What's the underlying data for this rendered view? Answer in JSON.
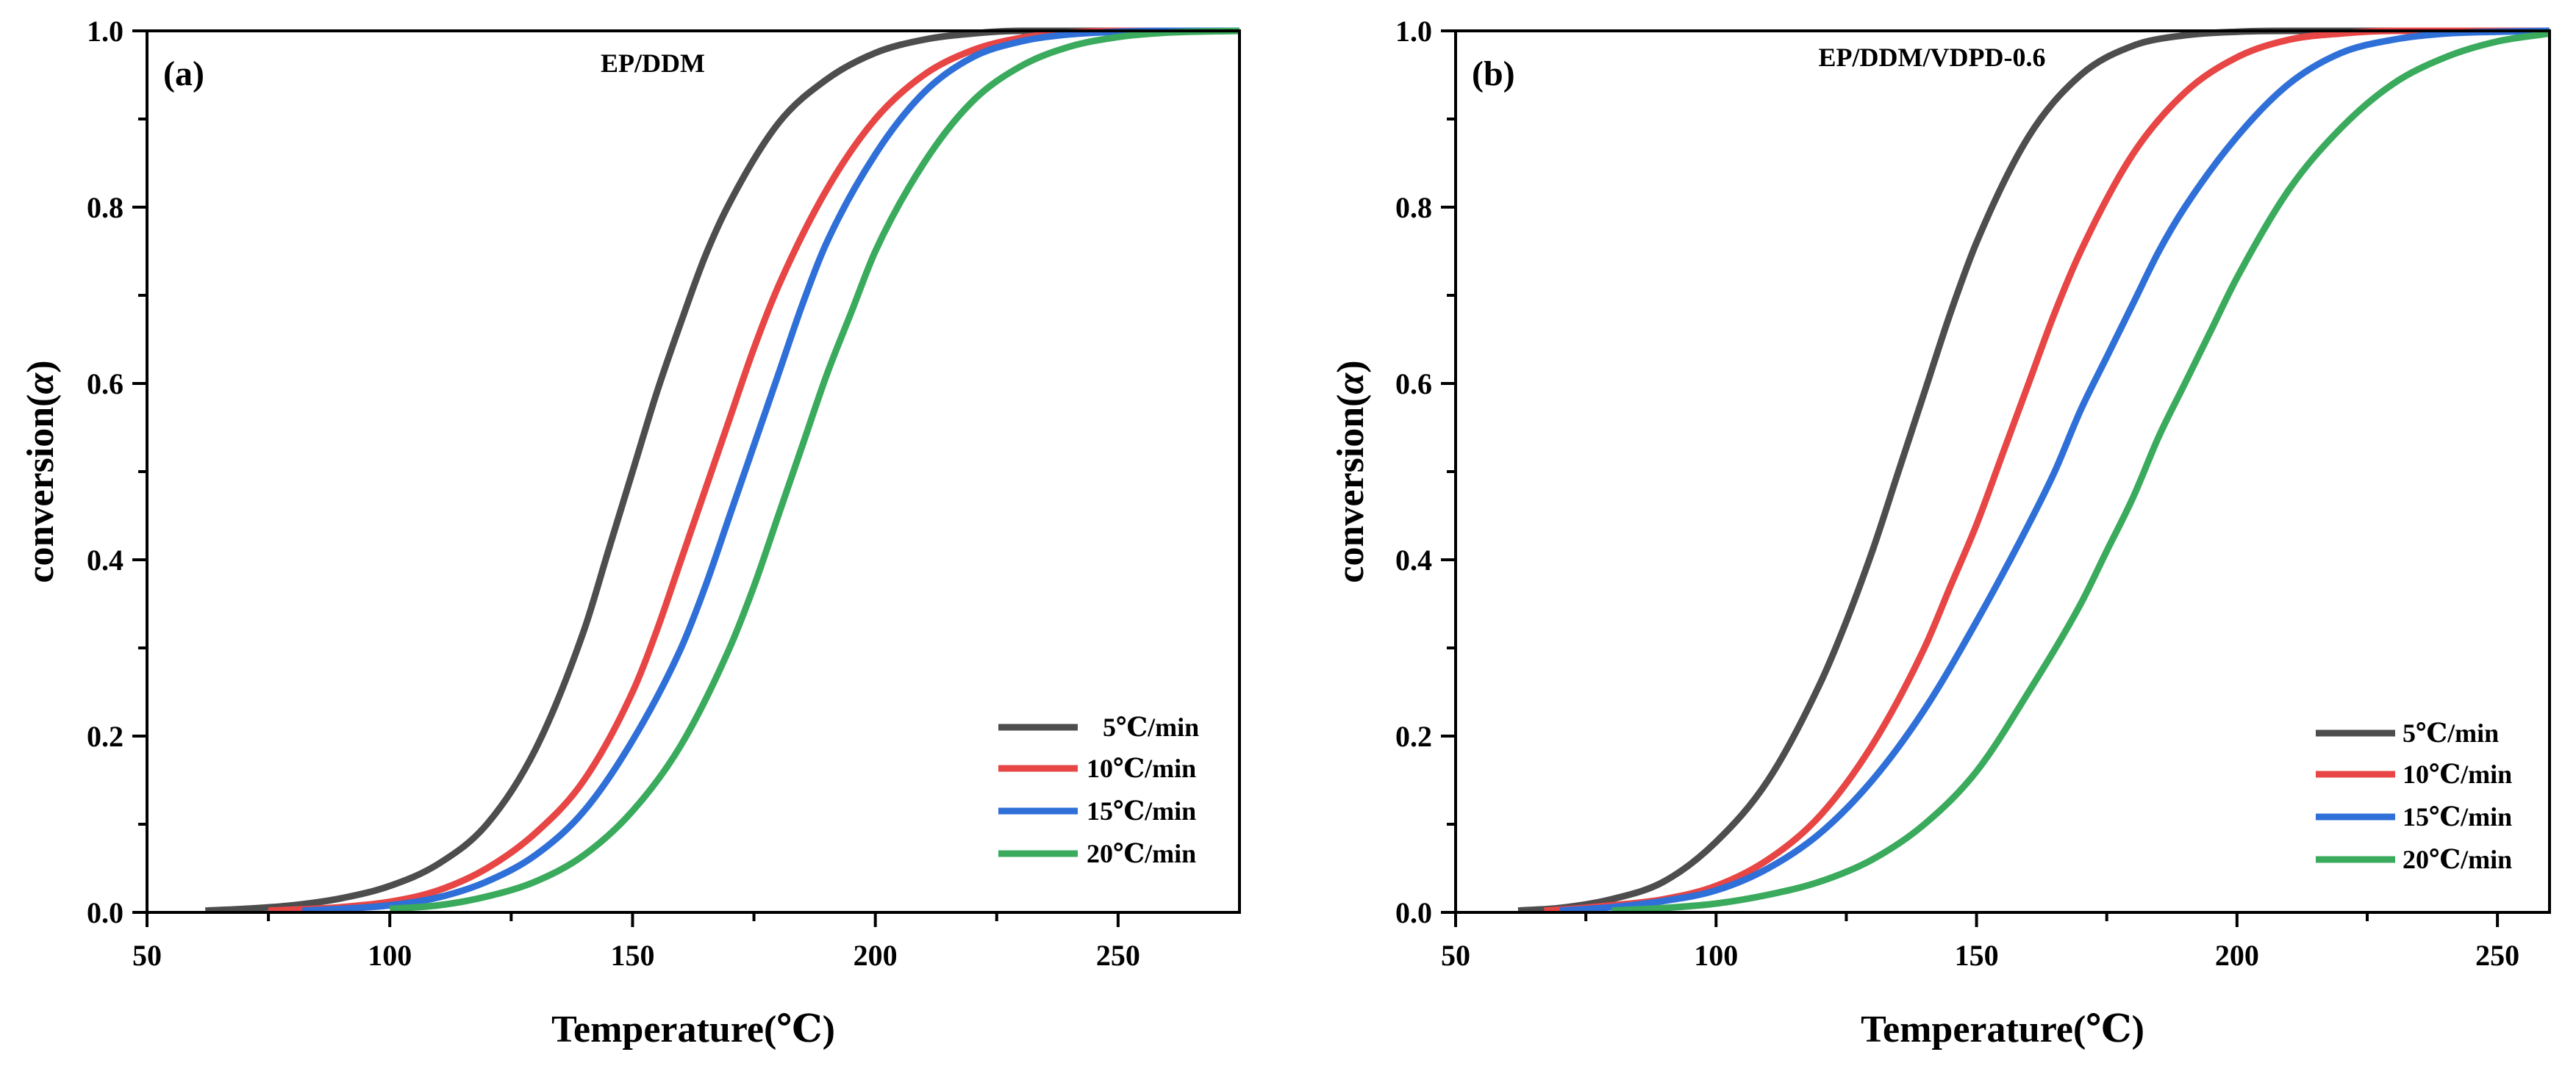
{
  "chart_data": [
    {
      "type": "line",
      "panel_label": "(a)",
      "title": "EP/DDM",
      "xlabel": "Temperature(℃)",
      "ylabel_prefix": "conversion(",
      "ylabel_symbol": "α",
      "ylabel_suffix": ")",
      "xlim": [
        50,
        275
      ],
      "ylim": [
        0,
        1.0
      ],
      "x_ticks": [
        50,
        100,
        150,
        200,
        250
      ],
      "x_tick_labels": [
        "50",
        "100",
        "150",
        "200",
        "250"
      ],
      "y_ticks": [
        0,
        0.2,
        0.4,
        0.6,
        0.8,
        1.0
      ],
      "y_tick_labels": [
        "0.0",
        "0.2",
        "0.4",
        "0.6",
        "0.8",
        "1.0"
      ],
      "legend_position": "bottom-right",
      "series": [
        {
          "name": "5℃/min",
          "color": "#4d4d4d",
          "x": [
            62,
            70,
            80,
            90,
            100,
            110,
            120,
            130,
            140,
            145,
            150,
            155,
            160,
            165,
            170,
            180,
            190,
            200,
            210,
            220,
            230,
            240,
            250,
            260,
            275
          ],
          "y": [
            0.002,
            0.004,
            0.008,
            0.016,
            0.03,
            0.055,
            0.1,
            0.185,
            0.32,
            0.41,
            0.5,
            0.59,
            0.67,
            0.745,
            0.805,
            0.895,
            0.945,
            0.975,
            0.99,
            0.997,
            1.0,
            1.0,
            1.0,
            1.0,
            1.0
          ]
        },
        {
          "name": "10℃/min",
          "color": "#e84545",
          "x": [
            75,
            80,
            90,
            100,
            110,
            120,
            130,
            140,
            150,
            155,
            160,
            165,
            170,
            175,
            180,
            190,
            200,
            210,
            220,
            230,
            240,
            250,
            260,
            275
          ],
          "y": [
            0.002,
            0.003,
            0.006,
            0.012,
            0.025,
            0.05,
            0.09,
            0.15,
            0.25,
            0.32,
            0.4,
            0.48,
            0.56,
            0.64,
            0.71,
            0.82,
            0.9,
            0.95,
            0.978,
            0.992,
            0.998,
            1.0,
            1.0,
            1.0
          ]
        },
        {
          "name": "15℃/min",
          "color": "#2f6fd8",
          "x": [
            82,
            90,
            100,
            110,
            120,
            130,
            140,
            150,
            160,
            165,
            170,
            175,
            180,
            185,
            190,
            200,
            210,
            220,
            230,
            240,
            250,
            260,
            275
          ],
          "y": [
            0.002,
            0.004,
            0.008,
            0.017,
            0.035,
            0.065,
            0.115,
            0.195,
            0.3,
            0.37,
            0.45,
            0.53,
            0.61,
            0.69,
            0.76,
            0.86,
            0.93,
            0.97,
            0.988,
            0.996,
            0.999,
            1.0,
            1.0
          ]
        },
        {
          "name": "20℃/min",
          "color": "#3aaa5c",
          "x": [
            100,
            110,
            120,
            130,
            140,
            150,
            160,
            170,
            175,
            180,
            185,
            190,
            195,
            200,
            210,
            220,
            230,
            240,
            250,
            260,
            275
          ],
          "y": [
            0.004,
            0.008,
            0.018,
            0.035,
            0.065,
            0.115,
            0.19,
            0.3,
            0.37,
            0.45,
            0.53,
            0.61,
            0.68,
            0.75,
            0.85,
            0.92,
            0.96,
            0.982,
            0.993,
            0.998,
            1.0
          ]
        }
      ]
    },
    {
      "type": "line",
      "panel_label": "(b)",
      "title": "EP/DDM/VDPD-0.6",
      "xlabel": "Temperature(℃)",
      "ylabel_prefix": "conversion(",
      "ylabel_symbol": "α",
      "ylabel_suffix": ")",
      "xlim": [
        50,
        260
      ],
      "ylim": [
        0,
        1.0
      ],
      "x_ticks": [
        50,
        100,
        150,
        200,
        250
      ],
      "x_tick_labels": [
        "50",
        "100",
        "150",
        "200",
        "250"
      ],
      "y_ticks": [
        0,
        0.2,
        0.4,
        0.6,
        0.8,
        1.0
      ],
      "y_tick_labels": [
        "0.0",
        "0.2",
        "0.4",
        "0.6",
        "0.8",
        "1.0"
      ],
      "legend_position": "bottom-right",
      "series": [
        {
          "name": "5℃/min",
          "color": "#4d4d4d",
          "x": [
            62,
            70,
            80,
            90,
            100,
            110,
            120,
            125,
            130,
            135,
            140,
            145,
            150,
            160,
            170,
            180,
            190,
            200,
            210,
            220,
            240,
            260
          ],
          "y": [
            0.002,
            0.005,
            0.015,
            0.035,
            0.08,
            0.15,
            0.26,
            0.33,
            0.41,
            0.5,
            0.59,
            0.68,
            0.76,
            0.88,
            0.95,
            0.983,
            0.995,
            0.999,
            1.0,
            1.0,
            1.0,
            1.0
          ]
        },
        {
          "name": "10℃/min",
          "color": "#e84545",
          "x": [
            67,
            70,
            80,
            90,
            100,
            110,
            120,
            130,
            140,
            145,
            150,
            155,
            160,
            165,
            170,
            180,
            190,
            200,
            210,
            220,
            230,
            240,
            250,
            260
          ],
          "y": [
            0.002,
            0.003,
            0.008,
            0.015,
            0.03,
            0.06,
            0.11,
            0.19,
            0.3,
            0.37,
            0.44,
            0.52,
            0.6,
            0.68,
            0.75,
            0.86,
            0.93,
            0.97,
            0.99,
            0.997,
            1.0,
            1.0,
            1.0,
            1.0
          ]
        },
        {
          "name": "15℃/min",
          "color": "#2f6fd8",
          "x": [
            70,
            80,
            90,
            100,
            110,
            120,
            130,
            140,
            150,
            160,
            165,
            170,
            175,
            180,
            185,
            190,
            200,
            210,
            220,
            230,
            240,
            250,
            260
          ],
          "y": [
            0.002,
            0.006,
            0.013,
            0.025,
            0.05,
            0.09,
            0.15,
            0.23,
            0.33,
            0.44,
            0.5,
            0.57,
            0.63,
            0.69,
            0.75,
            0.8,
            0.88,
            0.94,
            0.975,
            0.99,
            0.997,
            0.999,
            1.0
          ]
        },
        {
          "name": "20℃/min",
          "color": "#3aaa5c",
          "x": [
            80,
            90,
            100,
            110,
            120,
            130,
            140,
            150,
            160,
            170,
            175,
            180,
            185,
            190,
            195,
            200,
            210,
            220,
            230,
            240,
            250,
            260
          ],
          "y": [
            0.002,
            0.005,
            0.01,
            0.02,
            0.035,
            0.06,
            0.1,
            0.16,
            0.25,
            0.35,
            0.41,
            0.47,
            0.54,
            0.6,
            0.66,
            0.72,
            0.82,
            0.89,
            0.94,
            0.97,
            0.988,
            0.997
          ]
        }
      ]
    }
  ]
}
